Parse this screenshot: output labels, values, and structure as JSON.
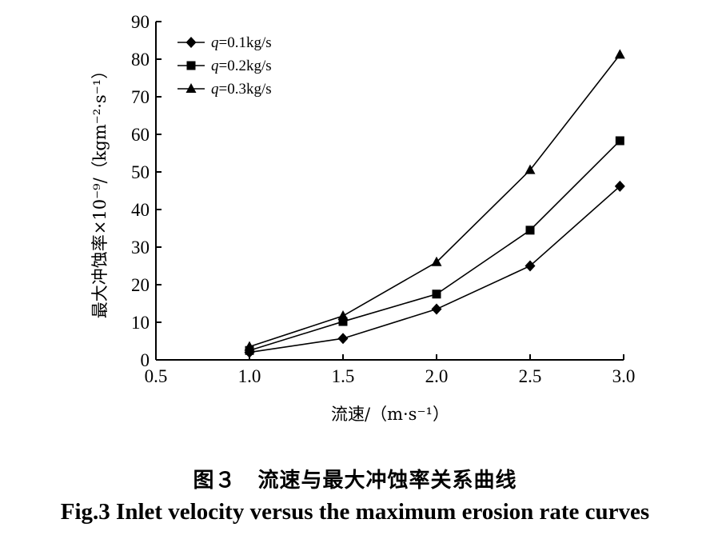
{
  "chart_data": {
    "type": "line",
    "xlabel": "流速/（m·s⁻¹）",
    "ylabel": "最大冲蚀率×10⁻⁹/（kgm⁻²·s⁻¹）",
    "xlim": [
      0.5,
      3.0
    ],
    "ylim": [
      0,
      90
    ],
    "xticks": [
      "0.5",
      "1.0",
      "1.5",
      "2.0",
      "2.5",
      "3.0"
    ],
    "yticks": [
      "0",
      "10",
      "20",
      "30",
      "40",
      "50",
      "60",
      "70",
      "80",
      "90"
    ],
    "grid": false,
    "legend_position": "top-left",
    "series": [
      {
        "name": "q=0.1kg/s",
        "name_var": "q",
        "name_rest": "=0.1kg/s",
        "marker": "diamond",
        "x": [
          1.0,
          1.5,
          2.0,
          2.5,
          2.98
        ],
        "y": [
          2.0,
          5.7,
          13.5,
          25.0,
          46.2
        ]
      },
      {
        "name": "q=0.2kg/s",
        "name_var": "q",
        "name_rest": "=0.2kg/s",
        "marker": "square",
        "x": [
          1.0,
          1.5,
          2.0,
          2.5,
          2.98
        ],
        "y": [
          2.5,
          10.2,
          17.5,
          34.5,
          58.3
        ]
      },
      {
        "name": "q=0.3kg/s",
        "name_var": "q",
        "name_rest": "=0.3kg/s",
        "marker": "triangle",
        "x": [
          1.0,
          1.5,
          2.0,
          2.5,
          2.98
        ],
        "y": [
          3.5,
          11.7,
          26.0,
          50.5,
          81.2
        ]
      }
    ]
  },
  "caption": {
    "cn": "图３　流速与最大冲蚀率关系曲线",
    "en": "Fig.3 Inlet velocity versus the maximum erosion rate curves"
  }
}
